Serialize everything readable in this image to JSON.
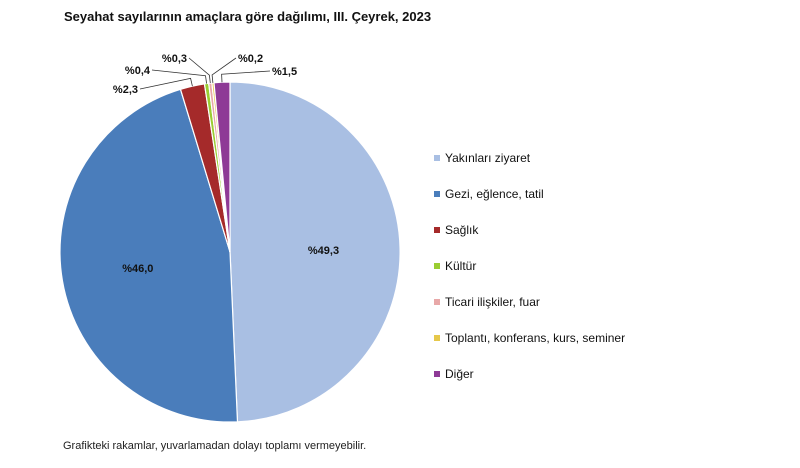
{
  "chart_data": {
    "type": "pie",
    "title": "Seyahat sayılarının amaçlara göre dağılımı, III. Çeyrek, 2023",
    "footnote": "Grafikteki rakamlar, yuvarlamadan dolayı toplamı vermeyebilir.",
    "legend_position": "right",
    "slices": [
      {
        "name": "Yakınları ziyaret",
        "value": 49.3,
        "label": "%49,3",
        "color": "#a9bfe3"
      },
      {
        "name": "Gezi, eğlence, tatil",
        "value": 46.0,
        "label": "%46,0",
        "color": "#4a7dbb"
      },
      {
        "name": "Sağlık",
        "value": 2.3,
        "label": "%2,3",
        "color": "#a52a2a"
      },
      {
        "name": "Kültür",
        "value": 0.4,
        "label": "%0,4",
        "color": "#9acd32"
      },
      {
        "name": "Ticari ilişkiler, fuar",
        "value": 0.3,
        "label": "%0,3",
        "color": "#e8a8a8"
      },
      {
        "name": "Toplantı, konferans, kurs, seminer",
        "value": 0.2,
        "label": "%0,2",
        "color": "#e6c84a"
      },
      {
        "name": "Diğer",
        "value": 1.5,
        "label": "%1,5",
        "color": "#8e3a96"
      }
    ]
  }
}
